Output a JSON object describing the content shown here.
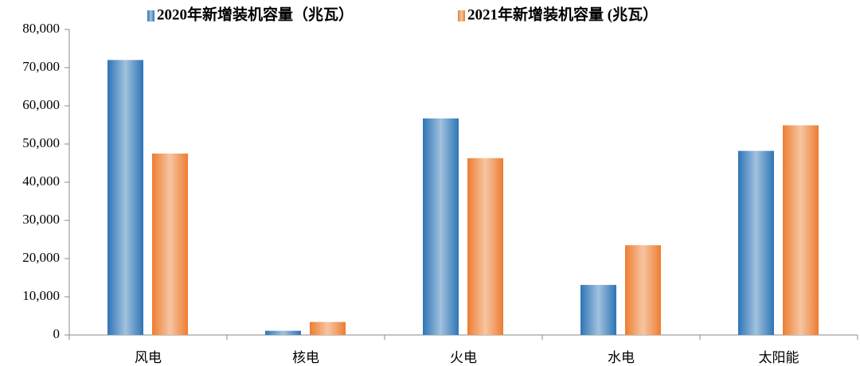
{
  "chart_data": {
    "type": "bar",
    "categories": [
      "风电",
      "核电",
      "火电",
      "水电",
      "太阳能"
    ],
    "series": [
      {
        "name": "2020年新增装机容量（兆瓦）",
        "color": "#2e75b6",
        "values": [
          72000,
          1100,
          56700,
          13100,
          48200
        ]
      },
      {
        "name": "2021年新增装机容量 (兆瓦）",
        "color": "#ed7d31",
        "values": [
          47500,
          3400,
          46300,
          23500,
          54900
        ]
      }
    ],
    "ylim": [
      0,
      80000
    ],
    "yticks": [
      0,
      {
        "value": 10000,
        "label": "10,000"
      },
      {
        "value": 20000,
        "label": "20,000"
      },
      {
        "value": 30000,
        "label": "30,000"
      },
      {
        "value": 40000,
        "label": "40,000"
      },
      {
        "value": 50000,
        "label": "50,000"
      },
      {
        "value": 60000,
        "label": "60,000"
      },
      {
        "value": 70000,
        "label": "70,000"
      },
      {
        "value": 80000,
        "label": "80,000"
      }
    ],
    "legend": "top",
    "grid": false
  }
}
